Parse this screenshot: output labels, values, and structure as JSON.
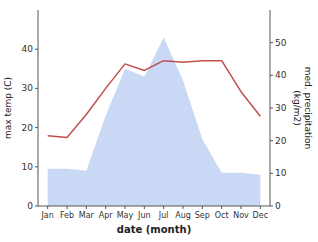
{
  "chart_data": {
    "type": "line",
    "xlabel": "date (month)",
    "ylabel": "max temp (C)",
    "y2label": "med. precipitation\n(kg/m2)",
    "categories": [
      "Jan",
      "Feb",
      "Mar",
      "Apr",
      "May",
      "Jun",
      "Jul",
      "Aug",
      "Sep",
      "Oct",
      "Nov",
      "Dec"
    ],
    "series": [
      {
        "type": "area",
        "color": "#c8d8f5",
        "values": [
          9.5,
          9.5,
          9.0,
          23.0,
          35.0,
          33.0,
          43.0,
          32.0,
          17.0,
          8.5,
          8.5,
          8.0
        ]
      },
      {
        "type": "line",
        "color": "#c0504d",
        "axis": "y2",
        "values": [
          21.5,
          21.0,
          28.0,
          36.0,
          43.5,
          41.5,
          44.5,
          44.0,
          44.5,
          44.5,
          35.0,
          27.5
        ]
      }
    ],
    "ylim": [
      0,
      50
    ],
    "yticks": [
      0,
      10,
      20,
      30,
      40
    ],
    "y2lim": [
      0,
      60
    ],
    "y2ticks": [
      0,
      10,
      20,
      30,
      40,
      50
    ],
    "grid": false
  }
}
